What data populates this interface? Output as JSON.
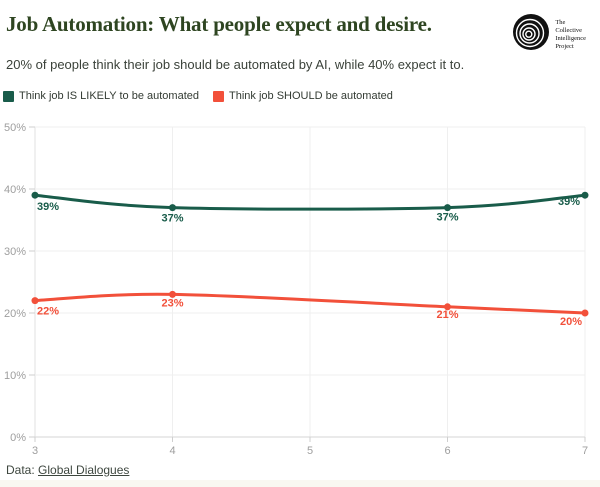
{
  "header": {
    "title": "Job Automation: What people expect and desire.",
    "subtitle": "20% of people think their job should be automated by AI, while 40% expect it to.",
    "logo": {
      "name": "The Collective Intelligence Project",
      "lines": [
        "The",
        "Collective",
        "Intelligence",
        "Project"
      ]
    }
  },
  "colors": {
    "likely_series": "#195c4a",
    "should_series": "#f2503a",
    "title": "#2e4521",
    "axis_label": "#9e9e9e",
    "gridline": "#efefef",
    "axis_line": "#d6d6d6"
  },
  "legend": [
    {
      "label": "Think job IS LIKELY to be automated",
      "color": "#195c4a"
    },
    {
      "label": "Think job SHOULD be automated",
      "color": "#f2503a"
    }
  ],
  "chart_data": {
    "type": "line",
    "x": [
      3,
      4,
      6,
      7
    ],
    "x_ticks": [
      3,
      4,
      5,
      6,
      7
    ],
    "x_tick_labels": [
      "3",
      "4",
      "5",
      "6",
      "7"
    ],
    "xlim": [
      3,
      7
    ],
    "ylim": [
      0,
      50
    ],
    "y_ticks": [
      0,
      10,
      20,
      30,
      40,
      50
    ],
    "y_tick_labels": [
      "0%",
      "10%",
      "20%",
      "30%",
      "40%",
      "50%"
    ],
    "grid": true,
    "legend_position": "top-left",
    "series": [
      {
        "name": "Think job IS LIKELY to be automated",
        "color": "#195c4a",
        "values": [
          39,
          37,
          37,
          39
        ],
        "point_labels": [
          "39%",
          "37%",
          "37%",
          "39%"
        ],
        "label_offsets": [
          {
            "dx": 2,
            "dy": 15,
            "anchor": "start"
          },
          {
            "dx": 0,
            "dy": 14,
            "anchor": "middle"
          },
          {
            "dx": 0,
            "dy": 13,
            "anchor": "middle"
          },
          {
            "dx": -5,
            "dy": 10,
            "anchor": "end"
          }
        ]
      },
      {
        "name": "Think job SHOULD be automated",
        "color": "#f2503a",
        "values": [
          22,
          23,
          21,
          20
        ],
        "point_labels": [
          "22%",
          "23%",
          "21%",
          "20%"
        ],
        "label_offsets": [
          {
            "dx": 2,
            "dy": 14,
            "anchor": "start"
          },
          {
            "dx": 0,
            "dy": 12,
            "anchor": "middle"
          },
          {
            "dx": 0,
            "dy": 11,
            "anchor": "middle"
          },
          {
            "dx": -3,
            "dy": 12,
            "anchor": "end"
          }
        ]
      }
    ]
  },
  "footer": {
    "prefix": "Data: ",
    "link_label": "Global Dialogues"
  }
}
